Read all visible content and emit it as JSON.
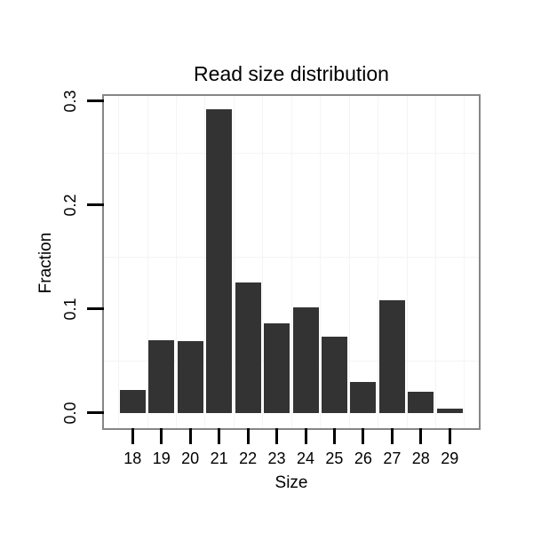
{
  "chart_data": {
    "type": "bar",
    "title": "Read size distribution",
    "xlabel": "Size",
    "ylabel": "Fraction",
    "categories": [
      "18",
      "19",
      "20",
      "21",
      "22",
      "23",
      "24",
      "25",
      "26",
      "27",
      "28",
      "29"
    ],
    "values": [
      0.022,
      0.07,
      0.069,
      0.292,
      0.125,
      0.086,
      0.101,
      0.073,
      0.03,
      0.108,
      0.02,
      0.004
    ],
    "y_ticks": [
      {
        "label": "0.0",
        "value": 0.0
      },
      {
        "label": "0.1",
        "value": 0.1
      },
      {
        "label": "0.2",
        "value": 0.2
      },
      {
        "label": "0.3",
        "value": 0.3
      }
    ],
    "y_minor_gridlines": [
      0.05,
      0.15,
      0.25
    ],
    "ylim": [
      0,
      0.3
    ],
    "grid": "minor-only",
    "legend": false
  },
  "colors": {
    "bar": "#333333",
    "panel_border": "#868686",
    "grid_minor": "#f4f4f4",
    "tick": "#000000",
    "text": "#000000",
    "background": "#ffffff"
  }
}
